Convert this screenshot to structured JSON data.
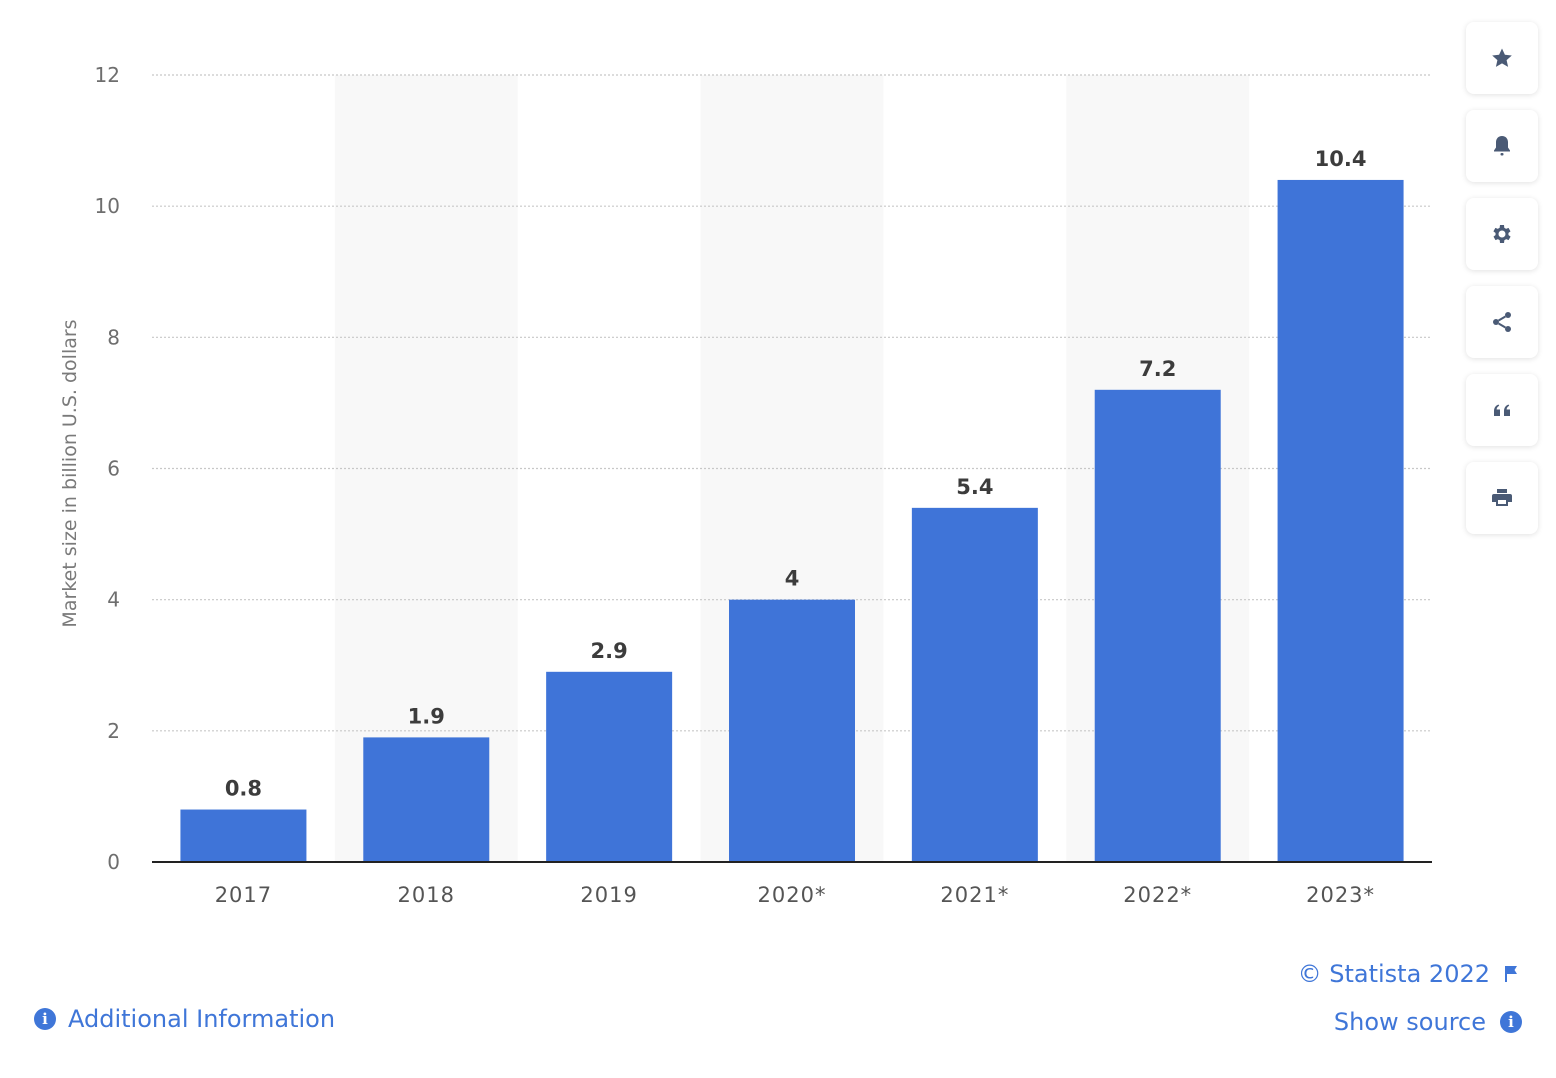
{
  "chart_data": {
    "type": "bar",
    "categories": [
      "2017",
      "2018",
      "2019",
      "2020*",
      "2021*",
      "2022*",
      "2023*"
    ],
    "values": [
      0.8,
      1.9,
      2.9,
      4,
      5.4,
      7.2,
      10.4
    ],
    "value_labels": [
      "0.8",
      "1.9",
      "2.9",
      "4",
      "5.4",
      "7.2",
      "10.4"
    ],
    "ylabel": "Market size in billion U.S. dollars",
    "ylim": [
      0,
      12
    ],
    "yticks": [
      "0",
      "2",
      "4",
      "6",
      "8",
      "10",
      "12"
    ],
    "grid": true,
    "bar_color": "#3f74d8"
  },
  "toolbar": {
    "items": [
      {
        "icon": "star-icon",
        "label": "favorite"
      },
      {
        "icon": "bell-icon",
        "label": "notification"
      },
      {
        "icon": "gear-icon",
        "label": "settings"
      },
      {
        "icon": "share-icon",
        "label": "share"
      },
      {
        "icon": "quote-icon",
        "label": "cite"
      },
      {
        "icon": "print-icon",
        "label": "print"
      }
    ]
  },
  "footer": {
    "additional_info": "Additional Information",
    "copyright": "© Statista 2022",
    "show_source": "Show source"
  },
  "colors": {
    "accent": "#3f76d8",
    "icon": "#4a5a75"
  }
}
